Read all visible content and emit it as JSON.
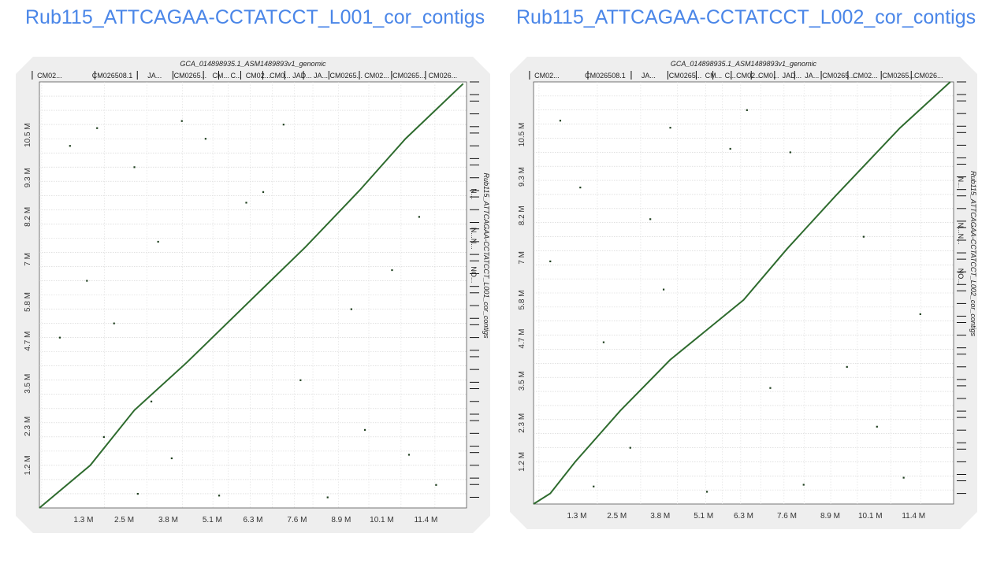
{
  "titles": {
    "left": "Rub115_ATTCAGAA-CCTATCCT_L001_cor_contigs",
    "right": "Rub115_ATTCAGAA-CCTATCCT_L002_cor_contigs"
  },
  "colors": {
    "title": "#4a86e8",
    "alignment": "#2e6b2e",
    "frame": "#eeeeee"
  },
  "chart_data": [
    {
      "type": "scatter",
      "subtype": "dotplot",
      "title": "GCA_014898935.1_ASM1489893v1_genomic",
      "xlabel": "GCA_014898935.1_ASM1489893v1_genomic",
      "ylabel": "Rub115_ATTCAGAA-CCTATCCT_L001_cor_contigs",
      "xlim": [
        0,
        12.6
      ],
      "ylim": [
        0,
        12.0
      ],
      "x_unit": "Mbp",
      "y_unit": "Mbp",
      "x_ticks": [
        "1.3 M",
        "2.5 M",
        "3.8 M",
        "5.1 M",
        "6.3 M",
        "7.6 M",
        "8.9 M",
        "10.1 M",
        "11.4 M"
      ],
      "x_tick_values": [
        1.3,
        2.5,
        3.8,
        5.1,
        6.3,
        7.6,
        8.9,
        10.1,
        11.4
      ],
      "y_ticks": [
        "1.2 M",
        "2.3 M",
        "3.5 M",
        "4.7 M",
        "5.8 M",
        "7 M",
        "8.2 M",
        "9.3 M",
        "10.5 M"
      ],
      "y_tick_values": [
        1.2,
        2.3,
        3.5,
        4.7,
        5.8,
        7.0,
        8.2,
        9.3,
        10.5
      ],
      "top_contigs": [
        "CM02...",
        "CM026508.1",
        "JA...",
        "CM0265...",
        "CM...",
        "C...",
        "CM02...",
        "CM0...",
        "JAD...",
        "JA...",
        "CM0265...",
        "CM02...",
        "CM0265...",
        "CM026..."
      ],
      "top_contig_values": [
        0.3,
        2.15,
        3.4,
        4.45,
        5.35,
        5.8,
        6.45,
        7.1,
        7.75,
        8.3,
        9.05,
        9.95,
        10.9,
        11.9
      ],
      "side_contigs": [
        "N...",
        "N...N...",
        "NO..."
      ],
      "side_contig_values": [
        9.0,
        7.9,
        6.8
      ],
      "main_diagonal": [
        [
          0.0,
          0.0
        ],
        [
          1.5,
          1.2
        ],
        [
          2.8,
          2.75
        ],
        [
          4.35,
          4.1
        ],
        [
          6.5,
          6.1
        ],
        [
          7.85,
          7.35
        ],
        [
          9.45,
          8.95
        ],
        [
          10.8,
          10.4
        ],
        [
          12.5,
          11.95
        ]
      ],
      "scatter_points": [
        [
          0.9,
          10.2
        ],
        [
          1.7,
          10.7
        ],
        [
          2.8,
          9.6
        ],
        [
          4.9,
          10.4
        ],
        [
          3.5,
          7.5
        ],
        [
          6.1,
          8.6
        ],
        [
          1.4,
          6.4
        ],
        [
          2.2,
          5.2
        ],
        [
          3.3,
          3.0
        ],
        [
          7.7,
          3.6
        ],
        [
          9.6,
          2.2
        ],
        [
          10.9,
          1.5
        ],
        [
          5.3,
          0.35
        ],
        [
          8.5,
          0.3
        ],
        [
          11.7,
          0.65
        ],
        [
          2.9,
          0.4
        ],
        [
          6.6,
          8.9
        ],
        [
          4.2,
          10.9
        ],
        [
          9.2,
          5.6
        ],
        [
          11.2,
          8.2
        ],
        [
          0.6,
          4.8
        ],
        [
          7.2,
          10.8
        ],
        [
          10.4,
          6.7
        ],
        [
          1.9,
          2.0
        ],
        [
          3.9,
          1.4
        ]
      ]
    },
    {
      "type": "scatter",
      "subtype": "dotplot",
      "title": "GCA_014898935.1_ASM1489893v1_genomic",
      "xlabel": "GCA_014898935.1_ASM1489893v1_genomic",
      "ylabel": "Rub115_ATTCAGAA-CCTATCCT_L002_cor_contigs",
      "xlim": [
        0,
        12.6
      ],
      "ylim": [
        0,
        12.0
      ],
      "x_unit": "Mbp",
      "y_unit": "Mbp",
      "x_ticks": [
        "1.3 M",
        "2.5 M",
        "3.8 M",
        "5.1 M",
        "6.3 M",
        "7.6 M",
        "8.9 M",
        "10.1 M",
        "11.4 M"
      ],
      "x_tick_values": [
        1.3,
        2.5,
        3.8,
        5.1,
        6.3,
        7.6,
        8.9,
        10.1,
        11.4
      ],
      "y_ticks": [
        "1.2 M",
        "2.3 M",
        "3.5 M",
        "4.7 M",
        "5.8 M",
        "7 M",
        "8.2 M",
        "9.3 M",
        "10.5 M"
      ],
      "y_tick_values": [
        1.2,
        2.3,
        3.5,
        4.7,
        5.8,
        7.0,
        8.2,
        9.3,
        10.5
      ],
      "top_contigs": [
        "CM02...",
        "CM026508.1",
        "JA...",
        "CM0265...",
        "CM...",
        "C...",
        "CM02...",
        "CM0...",
        "JAD...",
        "JA...",
        "CM0265...",
        "CM02...",
        "CM0265...",
        "CM026..."
      ],
      "top_contig_values": [
        0.4,
        2.15,
        3.45,
        4.55,
        5.4,
        5.9,
        6.45,
        7.05,
        7.75,
        8.35,
        9.15,
        9.95,
        10.95,
        11.85
      ],
      "side_contigs": [
        "N...",
        "N...N...",
        "NO..."
      ],
      "side_contig_values": [
        9.3,
        8.0,
        6.7
      ],
      "main_diagonal": [
        [
          0.0,
          0.0
        ],
        [
          0.5,
          0.3
        ],
        [
          1.25,
          1.2
        ],
        [
          2.6,
          2.65
        ],
        [
          4.1,
          4.1
        ],
        [
          6.3,
          5.8
        ],
        [
          7.6,
          7.25
        ],
        [
          9.05,
          8.75
        ],
        [
          11.0,
          10.7
        ],
        [
          12.5,
          12.0
        ]
      ],
      "scatter_points": [
        [
          1.8,
          0.5
        ],
        [
          0.8,
          10.9
        ],
        [
          1.4,
          9.0
        ],
        [
          3.5,
          8.1
        ],
        [
          4.1,
          10.7
        ],
        [
          5.9,
          10.1
        ],
        [
          6.4,
          11.2
        ],
        [
          7.7,
          10.0
        ],
        [
          9.4,
          3.9
        ],
        [
          10.3,
          2.2
        ],
        [
          11.6,
          5.4
        ],
        [
          2.9,
          1.6
        ],
        [
          5.2,
          0.35
        ],
        [
          8.1,
          0.55
        ],
        [
          11.1,
          0.75
        ],
        [
          3.9,
          6.1
        ],
        [
          0.5,
          6.9
        ],
        [
          9.9,
          7.6
        ],
        [
          2.1,
          4.6
        ],
        [
          7.1,
          3.3
        ]
      ]
    }
  ]
}
